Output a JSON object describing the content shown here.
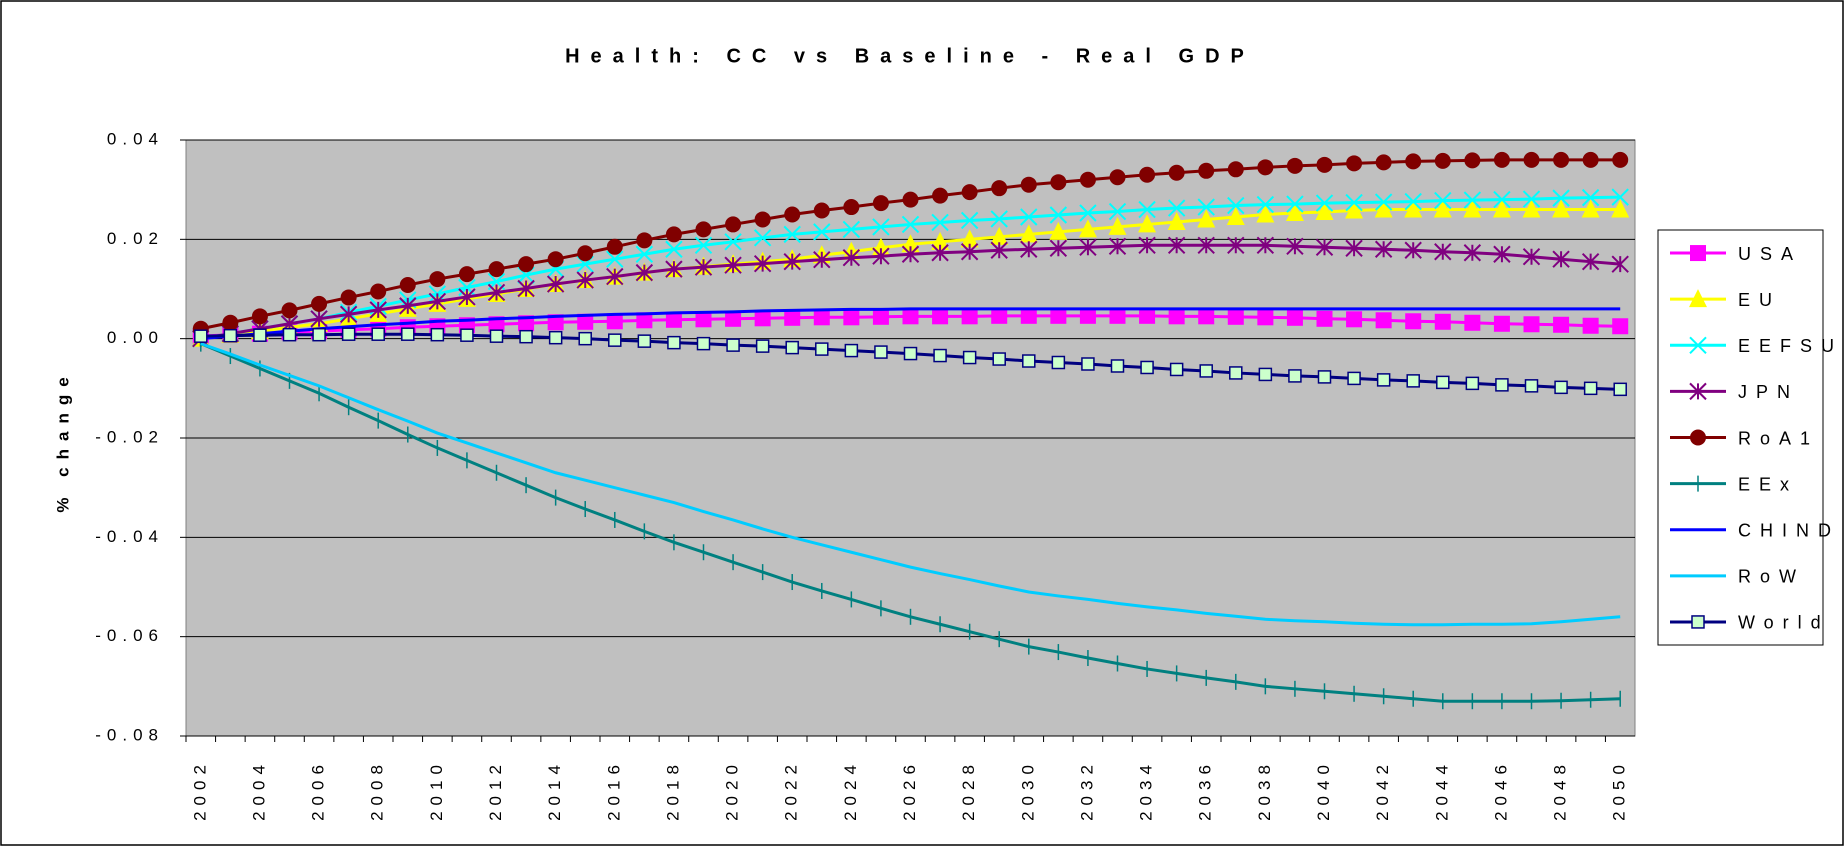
{
  "chart_data": {
    "type": "line",
    "title": "Health: CC vs Baseline - Real GDP",
    "y_label": "% change",
    "categories": [
      "2002",
      null,
      "2004",
      null,
      "2006",
      null,
      "2008",
      null,
      "2010",
      null,
      "2012",
      null,
      "2014",
      null,
      "2016",
      null,
      "2018",
      null,
      "2020",
      null,
      "2022",
      null,
      "2024",
      null,
      "2026",
      null,
      "2028",
      null,
      "2030",
      null,
      "2032",
      null,
      "2034",
      null,
      "2036",
      null,
      "2038",
      null,
      "2040",
      null,
      "2042",
      null,
      "2044",
      null,
      "2046",
      null,
      "2048",
      null,
      "2050"
    ],
    "ylim": [
      -0.08,
      0.04
    ],
    "yticks": [
      0.04,
      0.02,
      {
        "value": 0,
        "label": "0.00"
      },
      -0.02,
      -0.04,
      -0.06,
      -0.08
    ],
    "grid": true,
    "legend": "right",
    "series": [
      {
        "name": "USA",
        "color": "#ff00ff",
        "marker": "square",
        "values": [
          0.0005,
          0.0008,
          0.001,
          0.0013,
          0.0015,
          0.0018,
          0.002,
          0.0023,
          0.0025,
          0.0027,
          0.0029,
          0.0031,
          0.0033,
          0.0034,
          0.0035,
          0.0037,
          0.0038,
          0.0039,
          0.004,
          0.0041,
          0.0042,
          0.0043,
          0.0043,
          0.0044,
          0.0045,
          0.0045,
          0.0045,
          0.0046,
          0.0046,
          0.0046,
          0.0046,
          0.0046,
          0.0046,
          0.0045,
          0.0045,
          0.0044,
          0.0043,
          0.0042,
          0.004,
          0.0039,
          0.0037,
          0.0035,
          0.0034,
          0.0032,
          0.003,
          0.0029,
          0.0028,
          0.0026,
          0.0025
        ]
      },
      {
        "name": "EU",
        "color": "#ffff00",
        "marker": "triangle",
        "values": [
          0.0,
          0.0008,
          0.0015,
          0.0023,
          0.003,
          0.004,
          0.005,
          0.006,
          0.007,
          0.008,
          0.009,
          0.01,
          0.011,
          0.0118,
          0.0125,
          0.0133,
          0.014,
          0.0145,
          0.015,
          0.0155,
          0.016,
          0.0168,
          0.0175,
          0.0183,
          0.019,
          0.0195,
          0.02,
          0.0205,
          0.021,
          0.0215,
          0.022,
          0.0225,
          0.023,
          0.0235,
          0.024,
          0.0245,
          0.025,
          0.0253,
          0.0255,
          0.0258,
          0.026,
          0.026,
          0.026,
          0.026,
          0.026,
          0.026,
          0.026,
          0.026,
          0.026
        ]
      },
      {
        "name": "EEFSU",
        "color": "#00ffff",
        "marker": "x",
        "values": [
          0.0,
          0.001,
          0.002,
          0.003,
          0.004,
          0.0053,
          0.0065,
          0.0078,
          0.009,
          0.0103,
          0.0115,
          0.0128,
          0.014,
          0.015,
          0.016,
          0.017,
          0.018,
          0.0188,
          0.0195,
          0.0203,
          0.021,
          0.0215,
          0.022,
          0.0225,
          0.023,
          0.0234,
          0.0238,
          0.0241,
          0.0245,
          0.0249,
          0.0253,
          0.0256,
          0.026,
          0.0263,
          0.0265,
          0.0268,
          0.027,
          0.0271,
          0.0273,
          0.0274,
          0.0275,
          0.0276,
          0.0278,
          0.0279,
          0.028,
          0.0281,
          0.0283,
          0.0284,
          0.0285
        ]
      },
      {
        "name": "JPN",
        "color": "#800080",
        "marker": "asterisk",
        "values": [
          0.0,
          0.001,
          0.002,
          0.003,
          0.004,
          0.0049,
          0.0058,
          0.0066,
          0.0075,
          0.0084,
          0.0093,
          0.0101,
          0.011,
          0.0118,
          0.0125,
          0.0133,
          0.014,
          0.0144,
          0.0148,
          0.0151,
          0.0155,
          0.0159,
          0.0163,
          0.0166,
          0.017,
          0.0173,
          0.0175,
          0.0178,
          0.018,
          0.0182,
          0.0184,
          0.0186,
          0.0188,
          0.0188,
          0.0188,
          0.0188,
          0.0188,
          0.0186,
          0.0184,
          0.0182,
          0.018,
          0.0178,
          0.0175,
          0.0173,
          0.017,
          0.0165,
          0.016,
          0.0155,
          0.015
        ]
      },
      {
        "name": "RoA1",
        "color": "#800000",
        "marker": "circle",
        "values": [
          0.002,
          0.0032,
          0.0045,
          0.0057,
          0.007,
          0.0083,
          0.0095,
          0.0108,
          0.012,
          0.013,
          0.014,
          0.015,
          0.016,
          0.0172,
          0.0185,
          0.0198,
          0.021,
          0.022,
          0.023,
          0.024,
          0.025,
          0.0258,
          0.0265,
          0.0273,
          0.028,
          0.0288,
          0.0295,
          0.0303,
          0.031,
          0.0315,
          0.032,
          0.0325,
          0.033,
          0.0334,
          0.0338,
          0.0341,
          0.0345,
          0.0348,
          0.035,
          0.0353,
          0.0355,
          0.0357,
          0.0358,
          0.0359,
          0.036,
          0.036,
          0.036,
          0.036,
          0.036
        ]
      },
      {
        "name": "EEx",
        "color": "#008080",
        "marker": "plus",
        "values": [
          -0.001,
          -0.0035,
          -0.006,
          -0.0085,
          -0.011,
          -0.0138,
          -0.0165,
          -0.0193,
          -0.022,
          -0.0245,
          -0.027,
          -0.0295,
          -0.032,
          -0.0343,
          -0.0365,
          -0.0388,
          -0.041,
          -0.043,
          -0.045,
          -0.047,
          -0.049,
          -0.0508,
          -0.0525,
          -0.0543,
          -0.056,
          -0.0575,
          -0.059,
          -0.0605,
          -0.062,
          -0.0631,
          -0.0643,
          -0.0654,
          -0.0665,
          -0.0674,
          -0.0683,
          -0.0691,
          -0.07,
          -0.0705,
          -0.071,
          -0.0715,
          -0.072,
          -0.0725,
          -0.073,
          -0.073,
          -0.073,
          -0.073,
          -0.0729,
          -0.0727,
          -0.0725
        ]
      },
      {
        "name": "CHIND",
        "color": "#0000ff",
        "marker": "none",
        "values": [
          0.0,
          0.0005,
          0.001,
          0.0015,
          0.002,
          0.0024,
          0.0028,
          0.0031,
          0.0035,
          0.0037,
          0.004,
          0.0042,
          0.0045,
          0.0047,
          0.0049,
          0.005,
          0.0052,
          0.0053,
          0.0054,
          0.0056,
          0.0057,
          0.0058,
          0.0059,
          0.0059,
          0.006,
          0.006,
          0.006,
          0.006,
          0.006,
          0.006,
          0.006,
          0.006,
          0.006,
          0.006,
          0.006,
          0.006,
          0.006,
          0.006,
          0.006,
          0.006,
          0.006,
          0.006,
          0.006,
          0.006,
          0.006,
          0.006,
          0.006,
          0.006,
          0.006
        ]
      },
      {
        "name": "RoW",
        "color": "#00ccff",
        "marker": "none",
        "values": [
          -0.001,
          -0.0031,
          -0.0053,
          -0.0074,
          -0.0095,
          -0.0119,
          -0.0143,
          -0.0166,
          -0.019,
          -0.021,
          -0.023,
          -0.025,
          -0.027,
          -0.0285,
          -0.03,
          -0.0315,
          -0.033,
          -0.0348,
          -0.0365,
          -0.0383,
          -0.04,
          -0.0415,
          -0.043,
          -0.0445,
          -0.046,
          -0.0473,
          -0.0485,
          -0.0498,
          -0.051,
          -0.0518,
          -0.0525,
          -0.0533,
          -0.054,
          -0.0546,
          -0.0553,
          -0.0559,
          -0.0565,
          -0.0568,
          -0.057,
          -0.0573,
          -0.0575,
          -0.0576,
          -0.0576,
          -0.0575,
          -0.0575,
          -0.0574,
          -0.057,
          -0.0565,
          -0.056
        ]
      },
      {
        "name": "World",
        "color": "#000080",
        "marker": "open-square",
        "values": [
          0.0005,
          0.0006,
          0.0007,
          0.0008,
          0.0008,
          0.0009,
          0.0009,
          0.0009,
          0.0008,
          0.0007,
          0.0005,
          0.0004,
          0.0002,
          0.0,
          -0.0003,
          -0.0005,
          -0.0008,
          -0.001,
          -0.0013,
          -0.0015,
          -0.0018,
          -0.0021,
          -0.0024,
          -0.0027,
          -0.003,
          -0.0034,
          -0.0038,
          -0.0041,
          -0.0045,
          -0.0048,
          -0.0051,
          -0.0055,
          -0.0058,
          -0.0062,
          -0.0065,
          -0.0069,
          -0.0072,
          -0.0075,
          -0.0077,
          -0.008,
          -0.0083,
          -0.0085,
          -0.0088,
          -0.009,
          -0.0093,
          -0.0095,
          -0.0098,
          -0.01,
          -0.0102
        ]
      }
    ]
  }
}
